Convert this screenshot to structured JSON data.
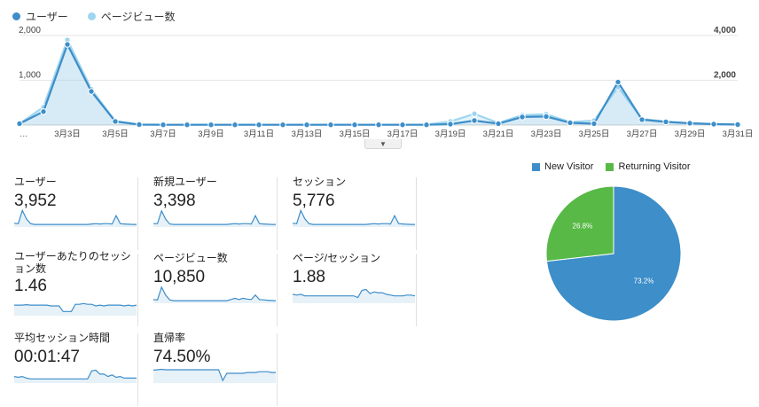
{
  "legend": {
    "series1": {
      "label": "ユーザー",
      "color": "#3d8ec9"
    },
    "series2": {
      "label": "ページビュー数",
      "color": "#9fd6ef"
    }
  },
  "chart_data": [
    {
      "type": "line",
      "title": "",
      "x_labels": [
        "…",
        "3月3日",
        "3月5日",
        "3月7日",
        "3月9日",
        "3月11日",
        "3月13日",
        "3月15日",
        "3月17日",
        "3月19日",
        "3月21日",
        "3月23日",
        "3月25日",
        "3月27日",
        "3月29日",
        "3月31日"
      ],
      "x": [
        1,
        2,
        3,
        4,
        5,
        6,
        7,
        8,
        9,
        10,
        11,
        12,
        13,
        14,
        15,
        16,
        17,
        18,
        19,
        20,
        21,
        22,
        23,
        24,
        25,
        26,
        27,
        28,
        29,
        30,
        31
      ],
      "left_axis": {
        "ticks": [
          "1,000",
          "2,000"
        ],
        "ylim": [
          0,
          2000
        ]
      },
      "right_axis": {
        "ticks": [
          "2,000",
          "4,000"
        ],
        "ylim": [
          0,
          4000
        ]
      },
      "series": [
        {
          "axis": "left",
          "values": [
            30,
            300,
            1800,
            750,
            80,
            10,
            5,
            5,
            5,
            5,
            5,
            5,
            5,
            5,
            5,
            5,
            5,
            5,
            20,
            100,
            30,
            180,
            190,
            50,
            30,
            960,
            120,
            70,
            40,
            20,
            10
          ]
        },
        {
          "axis": "right",
          "values": [
            60,
            800,
            3800,
            1600,
            180,
            20,
            10,
            10,
            10,
            10,
            10,
            10,
            10,
            10,
            10,
            10,
            10,
            20,
            160,
            500,
            90,
            440,
            480,
            130,
            200,
            1700,
            270,
            160,
            80,
            50,
            30
          ]
        }
      ]
    },
    {
      "type": "pie",
      "legend": [
        "New Visitor",
        "Returning Visitor"
      ],
      "labels": [
        "73.2%",
        "26.8%"
      ],
      "values": [
        73.2,
        26.8
      ],
      "colors": [
        "#3d8ec9",
        "#58b947"
      ]
    }
  ],
  "metrics": [
    {
      "label": "ユーザー",
      "value": "3,952",
      "spark": [
        0.12,
        0.1,
        0.92,
        0.4,
        0.1,
        0.05,
        0.05,
        0.05,
        0.05,
        0.05,
        0.05,
        0.05,
        0.05,
        0.05,
        0.05,
        0.05,
        0.05,
        0.05,
        0.05,
        0.08,
        0.1,
        0.08,
        0.1,
        0.1,
        0.08,
        0.6,
        0.1,
        0.08,
        0.06,
        0.05,
        0.05
      ]
    },
    {
      "label": "新規ユーザー",
      "value": "3,398",
      "spark": [
        0.1,
        0.1,
        0.9,
        0.38,
        0.08,
        0.05,
        0.05,
        0.05,
        0.05,
        0.05,
        0.05,
        0.05,
        0.05,
        0.05,
        0.05,
        0.05,
        0.05,
        0.05,
        0.05,
        0.08,
        0.1,
        0.08,
        0.1,
        0.1,
        0.08,
        0.6,
        0.1,
        0.08,
        0.06,
        0.05,
        0.05
      ]
    },
    {
      "label": "セッション",
      "value": "5,776",
      "spark": [
        0.12,
        0.1,
        0.92,
        0.4,
        0.1,
        0.05,
        0.05,
        0.05,
        0.05,
        0.05,
        0.05,
        0.05,
        0.05,
        0.05,
        0.05,
        0.05,
        0.05,
        0.05,
        0.05,
        0.08,
        0.1,
        0.08,
        0.1,
        0.1,
        0.08,
        0.6,
        0.1,
        0.08,
        0.06,
        0.05,
        0.05
      ]
    },
    {
      "label": "ユーザーあたりのセッション数",
      "value": "1.46",
      "spark": [
        0.55,
        0.55,
        0.55,
        0.58,
        0.55,
        0.55,
        0.55,
        0.55,
        0.55,
        0.5,
        0.5,
        0.5,
        0.15,
        0.15,
        0.15,
        0.6,
        0.6,
        0.65,
        0.6,
        0.6,
        0.5,
        0.55,
        0.5,
        0.55,
        0.55,
        0.55,
        0.55,
        0.5,
        0.55,
        0.5,
        0.55
      ]
    },
    {
      "label": "ページビュー数",
      "value": "10,850",
      "spark": [
        0.12,
        0.1,
        0.9,
        0.4,
        0.1,
        0.05,
        0.05,
        0.05,
        0.05,
        0.05,
        0.05,
        0.05,
        0.05,
        0.05,
        0.05,
        0.05,
        0.05,
        0.05,
        0.05,
        0.12,
        0.2,
        0.12,
        0.2,
        0.15,
        0.12,
        0.4,
        0.12,
        0.1,
        0.08,
        0.06,
        0.05
      ]
    },
    {
      "label": "ページ/セッション",
      "value": "1.88",
      "spark": [
        0.45,
        0.4,
        0.45,
        0.35,
        0.35,
        0.35,
        0.35,
        0.35,
        0.35,
        0.35,
        0.35,
        0.35,
        0.35,
        0.35,
        0.35,
        0.35,
        0.25,
        0.7,
        0.75,
        0.5,
        0.6,
        0.55,
        0.55,
        0.45,
        0.4,
        0.35,
        0.35,
        0.35,
        0.4,
        0.4,
        0.35
      ]
    },
    {
      "label": "平均セッション時間",
      "value": "00:01:47",
      "spark": [
        0.3,
        0.25,
        0.3,
        0.2,
        0.15,
        0.15,
        0.15,
        0.15,
        0.15,
        0.15,
        0.15,
        0.15,
        0.15,
        0.15,
        0.15,
        0.15,
        0.15,
        0.15,
        0.15,
        0.65,
        0.7,
        0.45,
        0.45,
        0.3,
        0.4,
        0.25,
        0.3,
        0.2,
        0.2,
        0.2,
        0.2
      ]
    },
    {
      "label": "直帰率",
      "value": "74.50%",
      "spark": [
        0.7,
        0.72,
        0.75,
        0.72,
        0.72,
        0.72,
        0.72,
        0.72,
        0.72,
        0.72,
        0.72,
        0.72,
        0.72,
        0.72,
        0.72,
        0.72,
        0.72,
        0.05,
        0.5,
        0.5,
        0.5,
        0.5,
        0.5,
        0.55,
        0.55,
        0.55,
        0.6,
        0.6,
        0.6,
        0.55,
        0.55
      ]
    }
  ]
}
